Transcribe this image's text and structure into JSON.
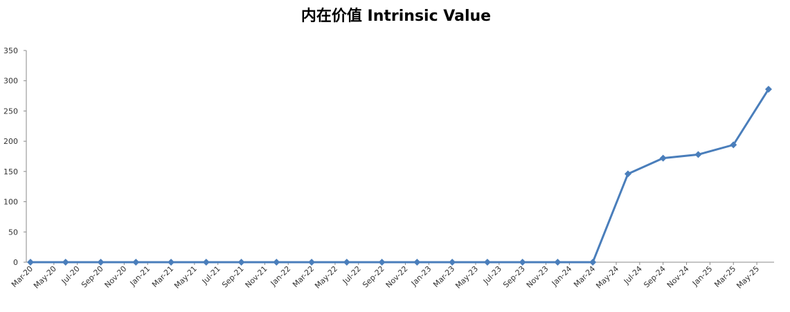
{
  "chart_data": {
    "type": "line",
    "title": "内在价值 Intrinsic Value",
    "color": "#4a7ebb",
    "x": [
      "2020-03",
      "2020-06",
      "2020-09",
      "2020-12",
      "2021-03",
      "2021-06",
      "2021-09",
      "2021-12",
      "2022-03",
      "2022-06",
      "2022-09",
      "2022-12",
      "2023-03",
      "2023-06",
      "2023-09",
      "2023-12",
      "2024-03",
      "2024-06",
      "2024-09",
      "2024-12",
      "2025-03",
      "2025-06"
    ],
    "values": [
      0,
      0,
      0,
      0,
      0,
      0,
      0,
      0,
      0,
      0,
      0,
      0,
      0,
      0,
      0,
      0,
      0,
      146,
      172,
      178,
      194,
      286
    ],
    "xlim": [
      "2020-03",
      "2025-06"
    ],
    "xticks": [
      {
        "value": "2020-03",
        "label": "Mar-20"
      },
      {
        "value": "2020-05",
        "label": "May-20"
      },
      {
        "value": "2020-07",
        "label": "Jul-20"
      },
      {
        "value": "2020-09",
        "label": "Sep-20"
      },
      {
        "value": "2020-11",
        "label": "Nov-20"
      },
      {
        "value": "2021-01",
        "label": "Jan-21"
      },
      {
        "value": "2021-03",
        "label": "Mar-21"
      },
      {
        "value": "2021-05",
        "label": "May-21"
      },
      {
        "value": "2021-07",
        "label": "Jul-21"
      },
      {
        "value": "2021-09",
        "label": "Sep-21"
      },
      {
        "value": "2021-11",
        "label": "Nov-21"
      },
      {
        "value": "2022-01",
        "label": "Jan-22"
      },
      {
        "value": "2022-03",
        "label": "Mar-22"
      },
      {
        "value": "2022-05",
        "label": "May-22"
      },
      {
        "value": "2022-07",
        "label": "Jul-22"
      },
      {
        "value": "2022-09",
        "label": "Sep-22"
      },
      {
        "value": "2022-11",
        "label": "Nov-22"
      },
      {
        "value": "2023-01",
        "label": "Jan-23"
      },
      {
        "value": "2023-03",
        "label": "Mar-23"
      },
      {
        "value": "2023-05",
        "label": "May-23"
      },
      {
        "value": "2023-07",
        "label": "Jul-23"
      },
      {
        "value": "2023-09",
        "label": "Sep-23"
      },
      {
        "value": "2023-11",
        "label": "Nov-23"
      },
      {
        "value": "2024-01",
        "label": "Jan-24"
      },
      {
        "value": "2024-03",
        "label": "Mar-24"
      },
      {
        "value": "2024-05",
        "label": "May-24"
      },
      {
        "value": "2024-07",
        "label": "Jul-24"
      },
      {
        "value": "2024-09",
        "label": "Sep-24"
      },
      {
        "value": "2024-11",
        "label": "Nov-24"
      },
      {
        "value": "2025-01",
        "label": "Jan-25"
      },
      {
        "value": "2025-03",
        "label": "Mar-25"
      },
      {
        "value": "2025-05",
        "label": "May-25"
      }
    ],
    "ylim": [
      0,
      350
    ],
    "yticks": [
      0,
      50,
      100,
      150,
      200,
      250,
      300,
      350
    ]
  }
}
